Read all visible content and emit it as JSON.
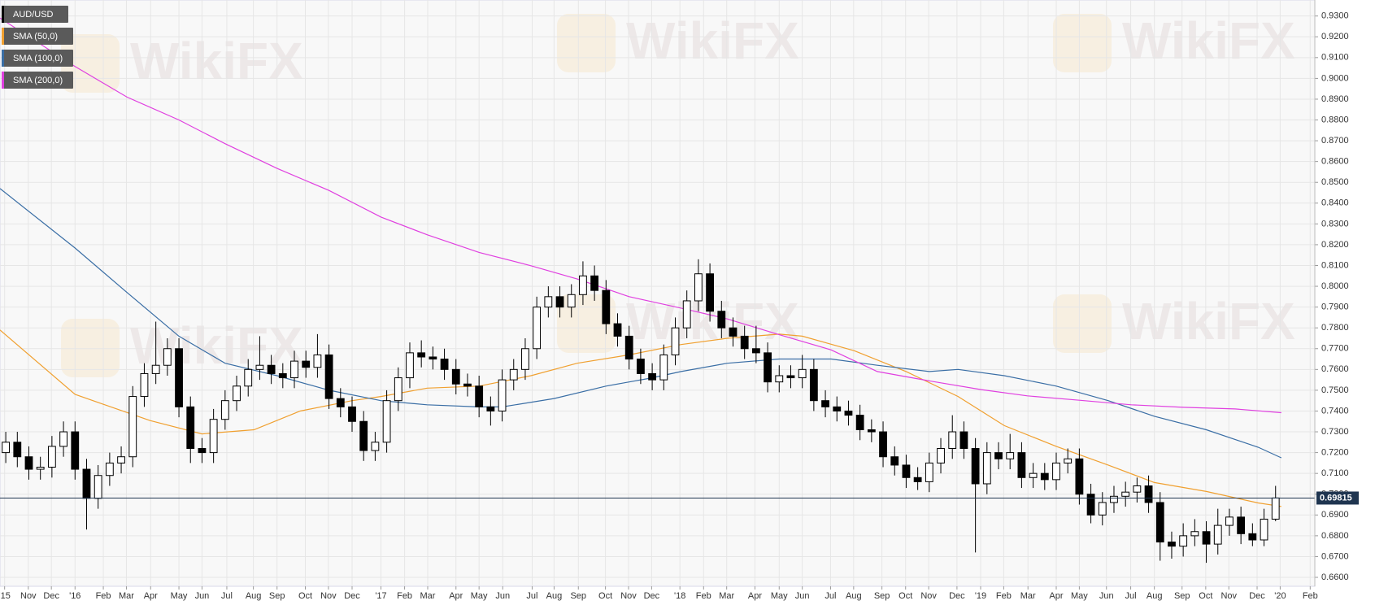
{
  "chart_data": {
    "type": "candlestick",
    "watermark": "WikiFX",
    "grid": true,
    "xlim": [
      0,
      227.8
    ],
    "ylim": [
      0.6557,
      0.9377
    ],
    "last_price": 0.69815,
    "xticks": [
      {
        "value": 0.8,
        "label": "'15"
      },
      {
        "value": 4.9,
        "label": "Nov"
      },
      {
        "value": 8.9,
        "label": "Dec"
      },
      {
        "value": 13.0,
        "label": "'16"
      },
      {
        "value": 17.9,
        "label": "Feb"
      },
      {
        "value": 21.9,
        "label": "Mar"
      },
      {
        "value": 26.1,
        "label": "Apr"
      },
      {
        "value": 31.0,
        "label": "May"
      },
      {
        "value": 35.0,
        "label": "Jun"
      },
      {
        "value": 39.3,
        "label": "Jul"
      },
      {
        "value": 43.9,
        "label": "Aug"
      },
      {
        "value": 48.0,
        "label": "Sep"
      },
      {
        "value": 52.9,
        "label": "Oct"
      },
      {
        "value": 56.9,
        "label": "Nov"
      },
      {
        "value": 61.0,
        "label": "Dec"
      },
      {
        "value": 66.0,
        "label": "'17"
      },
      {
        "value": 70.1,
        "label": "Feb"
      },
      {
        "value": 74.1,
        "label": "Mar"
      },
      {
        "value": 79.0,
        "label": "Apr"
      },
      {
        "value": 83.0,
        "label": "May"
      },
      {
        "value": 87.1,
        "label": "Jun"
      },
      {
        "value": 92.2,
        "label": "Jul"
      },
      {
        "value": 96.0,
        "label": "Aug"
      },
      {
        "value": 100.2,
        "label": "Sep"
      },
      {
        "value": 104.9,
        "label": "Oct"
      },
      {
        "value": 108.9,
        "label": "Nov"
      },
      {
        "value": 112.9,
        "label": "Dec"
      },
      {
        "value": 117.8,
        "label": "'18"
      },
      {
        "value": 121.9,
        "label": "Feb"
      },
      {
        "value": 125.9,
        "label": "Mar"
      },
      {
        "value": 130.8,
        "label": "Apr"
      },
      {
        "value": 135.0,
        "label": "May"
      },
      {
        "value": 139.0,
        "label": "Jun"
      },
      {
        "value": 143.9,
        "label": "Jul"
      },
      {
        "value": 147.9,
        "label": "Aug"
      },
      {
        "value": 152.8,
        "label": "Sep"
      },
      {
        "value": 156.9,
        "label": "Oct"
      },
      {
        "value": 160.9,
        "label": "Nov"
      },
      {
        "value": 165.8,
        "label": "Dec"
      },
      {
        "value": 169.9,
        "label": "'19"
      },
      {
        "value": 173.9,
        "label": "Feb"
      },
      {
        "value": 178.1,
        "label": "Mar"
      },
      {
        "value": 183.0,
        "label": "Apr"
      },
      {
        "value": 187.0,
        "label": "May"
      },
      {
        "value": 191.7,
        "label": "Jun"
      },
      {
        "value": 195.9,
        "label": "Jul"
      },
      {
        "value": 200.0,
        "label": "Aug"
      },
      {
        "value": 204.8,
        "label": "Sep"
      },
      {
        "value": 208.9,
        "label": "Oct"
      },
      {
        "value": 212.9,
        "label": "Nov"
      },
      {
        "value": 217.8,
        "label": "Dec"
      },
      {
        "value": 221.8,
        "label": "'20"
      },
      {
        "value": 227.0,
        "label": "Feb"
      }
    ],
    "yticks": [
      {
        "value": 0.66,
        "label": "0.6600"
      },
      {
        "value": 0.67,
        "label": "0.6700"
      },
      {
        "value": 0.68,
        "label": "0.6800"
      },
      {
        "value": 0.69,
        "label": "0.6900"
      },
      {
        "value": 0.7,
        "label": "0.7000"
      },
      {
        "value": 0.71,
        "label": "0.7100"
      },
      {
        "value": 0.72,
        "label": "0.7200"
      },
      {
        "value": 0.73,
        "label": "0.7300"
      },
      {
        "value": 0.74,
        "label": "0.7400"
      },
      {
        "value": 0.75,
        "label": "0.7500"
      },
      {
        "value": 0.76,
        "label": "0.7600"
      },
      {
        "value": 0.77,
        "label": "0.7700"
      },
      {
        "value": 0.78,
        "label": "0.7800"
      },
      {
        "value": 0.79,
        "label": "0.7900"
      },
      {
        "value": 0.8,
        "label": "0.8000"
      },
      {
        "value": 0.81,
        "label": "0.8100"
      },
      {
        "value": 0.82,
        "label": "0.8200"
      },
      {
        "value": 0.83,
        "label": "0.8300"
      },
      {
        "value": 0.84,
        "label": "0.8400"
      },
      {
        "value": 0.85,
        "label": "0.8500"
      },
      {
        "value": 0.86,
        "label": "0.8600"
      },
      {
        "value": 0.87,
        "label": "0.8700"
      },
      {
        "value": 0.88,
        "label": "0.8800"
      },
      {
        "value": 0.89,
        "label": "0.8900"
      },
      {
        "value": 0.9,
        "label": "0.9000"
      },
      {
        "value": 0.91,
        "label": "0.9100"
      },
      {
        "value": 0.92,
        "label": "0.9200"
      },
      {
        "value": 0.93,
        "label": "0.9300"
      }
    ],
    "series": [
      {
        "name": "AUD/USD",
        "color": "#000000",
        "x": [
          1,
          3,
          5,
          7,
          9,
          11,
          13,
          15,
          17,
          19,
          21,
          23,
          25,
          27,
          29,
          31,
          33,
          35,
          37,
          39,
          41,
          43,
          45,
          47,
          49,
          51,
          53,
          55,
          57,
          59,
          61,
          63,
          65,
          67,
          69,
          71,
          73,
          75,
          77,
          79,
          81,
          83,
          85,
          87,
          89,
          91,
          93,
          95,
          97,
          99,
          101,
          103,
          105,
          107,
          109,
          111,
          113,
          115,
          117,
          119,
          121,
          123,
          125,
          127,
          129,
          131,
          133,
          135,
          137,
          139,
          141,
          143,
          145,
          147,
          149,
          151,
          153,
          155,
          157,
          159,
          161,
          163,
          165,
          167,
          169,
          171,
          173,
          175,
          177,
          179,
          181,
          183,
          185,
          187,
          189,
          191,
          193,
          195,
          197,
          199,
          201,
          203,
          205,
          207,
          209,
          211,
          213,
          215,
          217,
          219,
          221
        ],
        "open": [
          0.72,
          0.725,
          0.718,
          0.712,
          0.713,
          0.723,
          0.73,
          0.712,
          0.698,
          0.709,
          0.715,
          0.718,
          0.747,
          0.758,
          0.762,
          0.77,
          0.742,
          0.722,
          0.72,
          0.736,
          0.745,
          0.752,
          0.76,
          0.762,
          0.758,
          0.756,
          0.764,
          0.761,
          0.767,
          0.746,
          0.742,
          0.735,
          0.721,
          0.725,
          0.745,
          0.756,
          0.768,
          0.766,
          0.765,
          0.76,
          0.753,
          0.752,
          0.742,
          0.74,
          0.755,
          0.76,
          0.77,
          0.79,
          0.795,
          0.79,
          0.796,
          0.805,
          0.798,
          0.782,
          0.776,
          0.765,
          0.758,
          0.755,
          0.767,
          0.78,
          0.793,
          0.806,
          0.788,
          0.78,
          0.776,
          0.77,
          0.768,
          0.754,
          0.757,
          0.756,
          0.76,
          0.745,
          0.742,
          0.74,
          0.738,
          0.731,
          0.73,
          0.718,
          0.714,
          0.708,
          0.706,
          0.715,
          0.722,
          0.73,
          0.722,
          0.705,
          0.72,
          0.717,
          0.72,
          0.708,
          0.71,
          0.707,
          0.715,
          0.717,
          0.7,
          0.69,
          0.696,
          0.699,
          0.701,
          0.704,
          0.696,
          0.677,
          0.675,
          0.68,
          0.682,
          0.676,
          0.685,
          0.689,
          0.681,
          0.678,
          0.688
        ],
        "high": [
          0.73,
          0.73,
          0.723,
          0.718,
          0.728,
          0.735,
          0.735,
          0.717,
          0.714,
          0.72,
          0.723,
          0.752,
          0.763,
          0.783,
          0.775,
          0.775,
          0.747,
          0.727,
          0.741,
          0.75,
          0.757,
          0.765,
          0.776,
          0.767,
          0.763,
          0.769,
          0.769,
          0.777,
          0.772,
          0.751,
          0.747,
          0.74,
          0.73,
          0.75,
          0.761,
          0.773,
          0.774,
          0.771,
          0.77,
          0.765,
          0.758,
          0.757,
          0.747,
          0.76,
          0.765,
          0.775,
          0.795,
          0.8,
          0.8,
          0.801,
          0.812,
          0.81,
          0.803,
          0.787,
          0.781,
          0.77,
          0.763,
          0.772,
          0.785,
          0.798,
          0.813,
          0.811,
          0.793,
          0.785,
          0.781,
          0.781,
          0.773,
          0.762,
          0.762,
          0.767,
          0.765,
          0.75,
          0.747,
          0.745,
          0.743,
          0.736,
          0.735,
          0.723,
          0.719,
          0.713,
          0.72,
          0.727,
          0.738,
          0.735,
          0.727,
          0.725,
          0.725,
          0.729,
          0.725,
          0.715,
          0.715,
          0.72,
          0.722,
          0.722,
          0.705,
          0.701,
          0.704,
          0.706,
          0.708,
          0.709,
          0.701,
          0.682,
          0.686,
          0.688,
          0.687,
          0.693,
          0.693,
          0.694,
          0.686,
          0.693,
          0.704
        ],
        "low": [
          0.715,
          0.713,
          0.707,
          0.707,
          0.708,
          0.718,
          0.707,
          0.683,
          0.693,
          0.704,
          0.71,
          0.713,
          0.742,
          0.753,
          0.757,
          0.737,
          0.715,
          0.715,
          0.715,
          0.731,
          0.74,
          0.747,
          0.755,
          0.753,
          0.751,
          0.751,
          0.756,
          0.756,
          0.741,
          0.737,
          0.73,
          0.716,
          0.716,
          0.72,
          0.74,
          0.751,
          0.761,
          0.76,
          0.755,
          0.748,
          0.747,
          0.737,
          0.733,
          0.735,
          0.75,
          0.755,
          0.765,
          0.785,
          0.785,
          0.785,
          0.791,
          0.793,
          0.777,
          0.771,
          0.76,
          0.753,
          0.75,
          0.75,
          0.762,
          0.775,
          0.788,
          0.783,
          0.775,
          0.771,
          0.765,
          0.763,
          0.749,
          0.749,
          0.751,
          0.751,
          0.74,
          0.737,
          0.735,
          0.733,
          0.726,
          0.725,
          0.713,
          0.709,
          0.703,
          0.702,
          0.701,
          0.71,
          0.717,
          0.717,
          0.672,
          0.7,
          0.712,
          0.712,
          0.703,
          0.703,
          0.702,
          0.702,
          0.71,
          0.695,
          0.686,
          0.685,
          0.691,
          0.694,
          0.696,
          0.691,
          0.668,
          0.669,
          0.67,
          0.675,
          0.667,
          0.671,
          0.68,
          0.676,
          0.675,
          0.675,
          0.687
        ],
        "close": [
          0.725,
          0.718,
          0.712,
          0.713,
          0.723,
          0.73,
          0.712,
          0.698,
          0.709,
          0.715,
          0.718,
          0.747,
          0.758,
          0.762,
          0.77,
          0.742,
          0.722,
          0.72,
          0.736,
          0.745,
          0.752,
          0.76,
          0.762,
          0.758,
          0.756,
          0.764,
          0.761,
          0.767,
          0.746,
          0.742,
          0.735,
          0.721,
          0.725,
          0.745,
          0.756,
          0.768,
          0.766,
          0.765,
          0.76,
          0.753,
          0.752,
          0.742,
          0.74,
          0.755,
          0.76,
          0.77,
          0.79,
          0.795,
          0.79,
          0.796,
          0.805,
          0.798,
          0.782,
          0.776,
          0.765,
          0.758,
          0.755,
          0.767,
          0.78,
          0.793,
          0.806,
          0.788,
          0.78,
          0.776,
          0.77,
          0.768,
          0.754,
          0.757,
          0.756,
          0.76,
          0.745,
          0.742,
          0.74,
          0.738,
          0.731,
          0.73,
          0.718,
          0.714,
          0.708,
          0.706,
          0.715,
          0.722,
          0.73,
          0.722,
          0.705,
          0.72,
          0.717,
          0.72,
          0.708,
          0.71,
          0.707,
          0.715,
          0.717,
          0.7,
          0.69,
          0.696,
          0.699,
          0.701,
          0.704,
          0.696,
          0.677,
          0.675,
          0.68,
          0.682,
          0.676,
          0.685,
          0.689,
          0.681,
          0.678,
          0.688,
          0.6982
        ]
      },
      {
        "name": "SMA (50,0)",
        "color": "#f0a030",
        "x": [
          0,
          13,
          26,
          35,
          44,
          52,
          61,
          66,
          74,
          83,
          92,
          100,
          109,
          118,
          126,
          135,
          139,
          148,
          157,
          166,
          174,
          183,
          192,
          200,
          209,
          218,
          222
        ],
        "values": [
          0.779,
          0.748,
          0.7354,
          0.729,
          0.731,
          0.74,
          0.745,
          0.747,
          0.751,
          0.752,
          0.757,
          0.763,
          0.767,
          0.772,
          0.775,
          0.777,
          0.776,
          0.769,
          0.759,
          0.747,
          0.733,
          0.723,
          0.714,
          0.7056,
          0.7013,
          0.6958,
          0.6941
        ]
      },
      {
        "name": "SMA (100,0)",
        "color": "#3a6ea5",
        "x": [
          0,
          13,
          22,
          31,
          39,
          48,
          57,
          66,
          74,
          83,
          87,
          96,
          105,
          113,
          118,
          126,
          135,
          144,
          152,
          161,
          166,
          174,
          183,
          192,
          200,
          209,
          218,
          222
        ],
        "values": [
          0.847,
          0.8184,
          0.797,
          0.776,
          0.763,
          0.757,
          0.75,
          0.745,
          0.743,
          0.742,
          0.742,
          0.746,
          0.752,
          0.756,
          0.759,
          0.763,
          0.765,
          0.765,
          0.762,
          0.759,
          0.76,
          0.757,
          0.752,
          0.745,
          0.7375,
          0.731,
          0.7226,
          0.7175
        ]
      },
      {
        "name": "SMA (200,0)",
        "color": "#e040e0",
        "x": [
          0,
          13,
          22,
          31,
          39,
          48,
          57,
          66,
          74,
          83,
          92,
          100,
          109,
          118,
          126,
          135,
          144,
          152,
          161,
          170,
          178,
          187,
          196,
          205,
          214,
          222
        ],
        "values": [
          0.929,
          0.9057,
          0.891,
          0.88,
          0.8686,
          0.8567,
          0.8461,
          0.8333,
          0.8248,
          0.8163,
          0.8099,
          0.8035,
          0.795,
          0.7895,
          0.7843,
          0.7767,
          0.7694,
          0.759,
          0.7545,
          0.7503,
          0.7473,
          0.7452,
          0.743,
          0.7418,
          0.741,
          0.7392
        ]
      }
    ]
  }
}
